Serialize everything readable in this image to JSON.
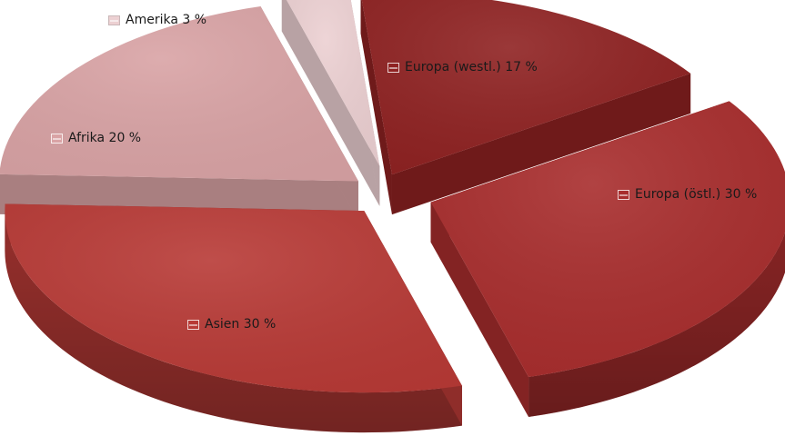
{
  "chart_data": {
    "type": "pie",
    "title": "",
    "slices": [
      {
        "label": "Europa (westl.) 17 %",
        "category": "Europa (westl.)",
        "value": 17,
        "color": "#8f2222"
      },
      {
        "label": "Europa (östl.) 30 %",
        "category": "Europa (östl.)",
        "value": 30,
        "color": "#a82d2d"
      },
      {
        "label": "Asien 30 %",
        "category": "Asien",
        "value": 30,
        "color": "#b83a36"
      },
      {
        "label": "Afrika 20 %",
        "category": "Afrika",
        "value": 20,
        "color": "#d9a3a5"
      },
      {
        "label": "Amerika 3 %",
        "category": "Amerika",
        "value": 3,
        "color": "#ecd0d2"
      }
    ],
    "legend": "labels-on-slices",
    "style": "3d-exploded"
  }
}
